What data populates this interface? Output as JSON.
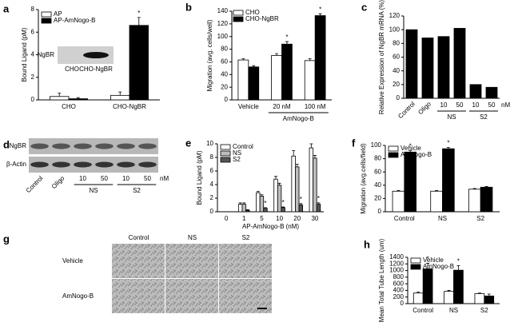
{
  "chart_data": [
    {
      "type": "bar",
      "panel": "a",
      "ylabel": "Bound Ligand (pM)",
      "categories": [
        "CHO",
        "CHO-NgBR"
      ],
      "series": [
        {
          "name": "AP",
          "color": "#ffffff",
          "values": [
            0.3,
            0.4
          ],
          "errors": [
            0.3,
            0.3
          ]
        },
        {
          "name": "AP-AmNogo-B",
          "color": "#000000",
          "values": [
            0.1,
            6.6
          ],
          "errors": [
            0.1,
            0.7
          ],
          "stars": [
            null,
            "*"
          ]
        }
      ],
      "ylim": [
        0,
        8
      ],
      "yticks": [
        0,
        2,
        4,
        6,
        8
      ],
      "inset": {
        "band_label": "NgBR",
        "lanes": [
          "CHO",
          "CHO-NgBR"
        ]
      }
    },
    {
      "type": "bar",
      "panel": "b",
      "ylabel": "Migration (avg. cells/well)",
      "categories": [
        "Vehicle",
        "20 nM",
        "100 nM"
      ],
      "groups": [
        {
          "label": "AmNogo-B",
          "from": 1,
          "to": 2
        }
      ],
      "series": [
        {
          "name": "CHO",
          "color": "#ffffff",
          "values": [
            63,
            70,
            62
          ],
          "errors": [
            2,
            3,
            3
          ]
        },
        {
          "name": "CHO-NgBR",
          "color": "#000000",
          "values": [
            52,
            88,
            133
          ],
          "errors": [
            2,
            4,
            3
          ],
          "stars": [
            null,
            "*",
            "*"
          ]
        }
      ],
      "ylim": [
        0,
        140
      ],
      "yticks": [
        0,
        20,
        40,
        60,
        80,
        100,
        120,
        140
      ]
    },
    {
      "type": "bar",
      "panel": "c",
      "ylabel": "Relative Expression of NgBR mRNA (%)",
      "categories": [
        "Control",
        "Oligo",
        "10",
        "50",
        "10",
        "50"
      ],
      "rotate": [
        0,
        1
      ],
      "groups": [
        {
          "label": "NS",
          "from": 2,
          "to": 3
        },
        {
          "label": "S2",
          "from": 4,
          "to": 5
        }
      ],
      "unit": "nM",
      "values": [
        100,
        88,
        90,
        102,
        20,
        16
      ],
      "color": "#000000",
      "ylim": [
        0,
        120
      ],
      "yticks": [
        0,
        20,
        40,
        60,
        80,
        100,
        120
      ]
    },
    {
      "type": "bar",
      "panel": "e",
      "ylabel": "Bound Ligand (pM)",
      "xlabel": "AP-AmNogo-B (nM)",
      "categories": [
        "0",
        "1",
        "5",
        "10",
        "20",
        "30"
      ],
      "series": [
        {
          "name": "Control",
          "color": "#ffffff",
          "values": [
            0,
            1.1,
            2.8,
            4.8,
            8.2,
            9.4
          ],
          "errors": [
            0,
            0.2,
            0.2,
            0.4,
            0.8,
            0.6
          ]
        },
        {
          "name": "NS",
          "color": "#bdbdbd",
          "values": [
            0,
            1.1,
            2.3,
            3.9,
            6.6,
            7.9
          ],
          "errors": [
            0,
            0.2,
            0.2,
            0.3,
            0.4,
            0.4
          ]
        },
        {
          "name": "S2",
          "color": "#555555",
          "values": [
            0,
            0.2,
            0.5,
            0.6,
            1.0,
            1.1
          ],
          "errors": [
            0,
            0.1,
            0.1,
            0.1,
            0.2,
            0.2
          ],
          "stars": [
            null,
            null,
            "*",
            "*",
            "*",
            "*"
          ]
        }
      ],
      "ylim": [
        0,
        10
      ],
      "yticks": [
        0,
        2,
        4,
        6,
        8,
        10
      ]
    },
    {
      "type": "bar",
      "panel": "f",
      "ylabel": "Migration (avg.cells/field)",
      "categories": [
        "Control",
        "NS",
        "S2"
      ],
      "series": [
        {
          "name": "Vehicle",
          "color": "#ffffff",
          "values": [
            31,
            31,
            34
          ],
          "errors": [
            1,
            1,
            1
          ]
        },
        {
          "name": "AmNogo-B",
          "color": "#000000",
          "values": [
            90,
            95,
            37
          ],
          "errors": [
            2,
            2,
            1
          ],
          "stars": [
            "*",
            "*",
            null
          ]
        }
      ],
      "ylim": [
        0,
        100
      ],
      "yticks": [
        0,
        20,
        40,
        60,
        80,
        100
      ]
    },
    {
      "type": "bar",
      "panel": "h",
      "ylabel": "Mean Total Tube Length (um)",
      "categories": [
        "Control",
        "NS",
        "S2"
      ],
      "series": [
        {
          "name": "Vehicle",
          "color": "#ffffff",
          "values": [
            320,
            370,
            300
          ],
          "errors": [
            30,
            30,
            20
          ]
        },
        {
          "name": "AmNogo-B",
          "color": "#000000",
          "values": [
            1050,
            1010,
            230
          ],
          "errors": [
            170,
            140,
            60
          ],
          "stars": [
            "*",
            "*",
            null
          ]
        }
      ],
      "ylim": [
        0,
        1400
      ],
      "yticks": [
        0,
        200,
        400,
        600,
        800,
        1000,
        1200,
        1400
      ]
    }
  ],
  "blot": {
    "panel": "d",
    "rows": [
      "NgBR",
      "β-Actin"
    ],
    "lanes": [
      "Control",
      "Oligo",
      "10",
      "50",
      "10",
      "50"
    ],
    "groups": [
      {
        "label": "NS",
        "from": 2,
        "to": 3
      },
      {
        "label": "S2",
        "from": 4,
        "to": 5
      }
    ],
    "unit": "nM"
  },
  "micrographs": {
    "panel": "g",
    "columns": [
      "Control",
      "NS",
      "S2"
    ],
    "rows": [
      "Vehicle",
      "AmNogo-B"
    ]
  }
}
